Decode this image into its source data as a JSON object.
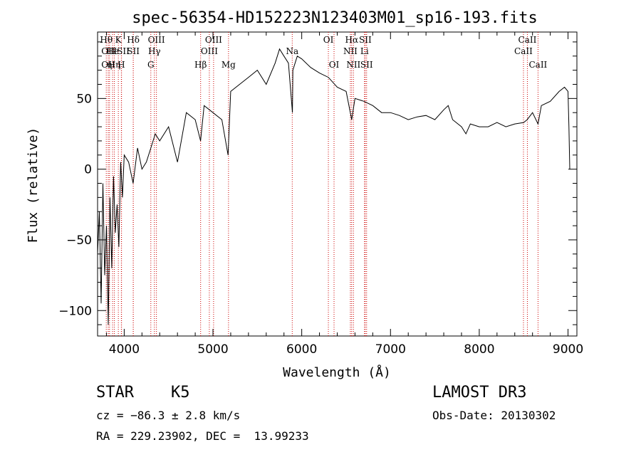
{
  "chart_data": {
    "type": "line",
    "title": "spec-56354-HD152223N123403M01_sp16-193.fits",
    "xlabel": "Wavelength (Å)",
    "ylabel": "Flux (relative)",
    "xlim": [
      3700,
      9100
    ],
    "ylim": [
      -118,
      97
    ],
    "xticks": [
      4000,
      5000,
      6000,
      7000,
      8000,
      9000
    ],
    "yticks": [
      -100,
      -50,
      0,
      50
    ],
    "tick_labels_x": [
      "4000",
      "5000",
      "6000",
      "7000",
      "8000",
      "9000"
    ],
    "tick_labels_y": [
      "−100",
      "−50",
      "0",
      "50"
    ],
    "series": [
      {
        "name": "flux",
        "x": [
          3700,
          3720,
          3740,
          3760,
          3780,
          3800,
          3820,
          3840,
          3860,
          3880,
          3900,
          3920,
          3940,
          3960,
          3980,
          4000,
          4050,
          4100,
          4150,
          4200,
          4250,
          4300,
          4350,
          4400,
          4500,
          4600,
          4700,
          4800,
          4860,
          4900,
          5000,
          5100,
          5170,
          5200,
          5300,
          5400,
          5500,
          5600,
          5700,
          5750,
          5800,
          5850,
          5895,
          5900,
          5950,
          6000,
          6100,
          6200,
          6300,
          6400,
          6500,
          6563,
          6600,
          6700,
          6800,
          6900,
          7000,
          7100,
          7200,
          7300,
          7400,
          7500,
          7600,
          7650,
          7700,
          7800,
          7850,
          7900,
          8000,
          8100,
          8200,
          8300,
          8400,
          8500,
          8540,
          8600,
          8662,
          8700,
          8800,
          8900,
          8960,
          9000,
          9010,
          9020
        ],
        "y": [
          -60,
          -30,
          -95,
          -10,
          -75,
          -40,
          -110,
          -20,
          -70,
          -5,
          -45,
          -25,
          -55,
          5,
          -20,
          10,
          5,
          -10,
          15,
          0,
          5,
          15,
          25,
          20,
          30,
          5,
          40,
          35,
          20,
          45,
          40,
          35,
          10,
          55,
          60,
          65,
          70,
          60,
          75,
          85,
          80,
          75,
          40,
          70,
          80,
          78,
          72,
          68,
          65,
          58,
          55,
          35,
          50,
          48,
          45,
          40,
          40,
          38,
          35,
          37,
          38,
          35,
          42,
          45,
          35,
          30,
          25,
          32,
          30,
          30,
          33,
          30,
          32,
          33,
          35,
          40,
          32,
          45,
          48,
          55,
          58,
          55,
          30,
          0
        ]
      }
    ],
    "lines": [
      {
        "wl": 3798,
        "label": "Hθ",
        "row": 0
      },
      {
        "wl": 3820,
        "label": "OII",
        "row": 1
      },
      {
        "wl": 3820,
        "label": "OII",
        "row": 2
      },
      {
        "wl": 3835,
        "label": "η",
        "row": 2
      },
      {
        "wl": 3869,
        "label": "He",
        "row": 1
      },
      {
        "wl": 3889,
        "label": "Hη",
        "row": 2
      },
      {
        "wl": 3934,
        "label": "K",
        "row": 0
      },
      {
        "wl": 3968,
        "label": "H",
        "row": 2
      },
      {
        "wl": 3970,
        "label": "ISII",
        "row": 1
      },
      {
        "wl": 4102,
        "label": "Hδ",
        "row": 0
      },
      {
        "wl": 4102,
        "label": "SII",
        "row": 1
      },
      {
        "wl": 4300,
        "label": "G",
        "row": 2
      },
      {
        "wl": 4340,
        "label": "Hγ",
        "row": 1
      },
      {
        "wl": 4363,
        "label": "OIII",
        "row": 0
      },
      {
        "wl": 4861,
        "label": "Hβ",
        "row": 2
      },
      {
        "wl": 4959,
        "label": "OIII",
        "row": 1
      },
      {
        "wl": 5007,
        "label": "OIII",
        "row": 0
      },
      {
        "wl": 5175,
        "label": "Mg",
        "row": 2
      },
      {
        "wl": 5893,
        "label": "Na",
        "row": 1
      },
      {
        "wl": 6300,
        "label": "OI",
        "row": 0
      },
      {
        "wl": 6364,
        "label": "OI",
        "row": 2
      },
      {
        "wl": 6548,
        "label": "NII",
        "row": 1
      },
      {
        "wl": 6563,
        "label": "Hα",
        "row": 0
      },
      {
        "wl": 6583,
        "label": "NII",
        "row": 2
      },
      {
        "wl": 6707,
        "label": "Li",
        "row": 1
      },
      {
        "wl": 6716,
        "label": "SII",
        "row": 0
      },
      {
        "wl": 6731,
        "label": "SII",
        "row": 2
      },
      {
        "wl": 8498,
        "label": "CaII",
        "row": 1
      },
      {
        "wl": 8542,
        "label": "CaII",
        "row": 0
      },
      {
        "wl": 8662,
        "label": "CaII",
        "row": 2
      }
    ],
    "line_color": "#cc0000"
  },
  "info": {
    "class": "STAR",
    "subclass": "K5",
    "cz": "cz = −86.3 ± 2.8 km/s",
    "radec": "RA = 229.23902, DEC =  13.99233",
    "survey": "LAMOST DR3",
    "obsdate": "Obs-Date: 20130302"
  }
}
